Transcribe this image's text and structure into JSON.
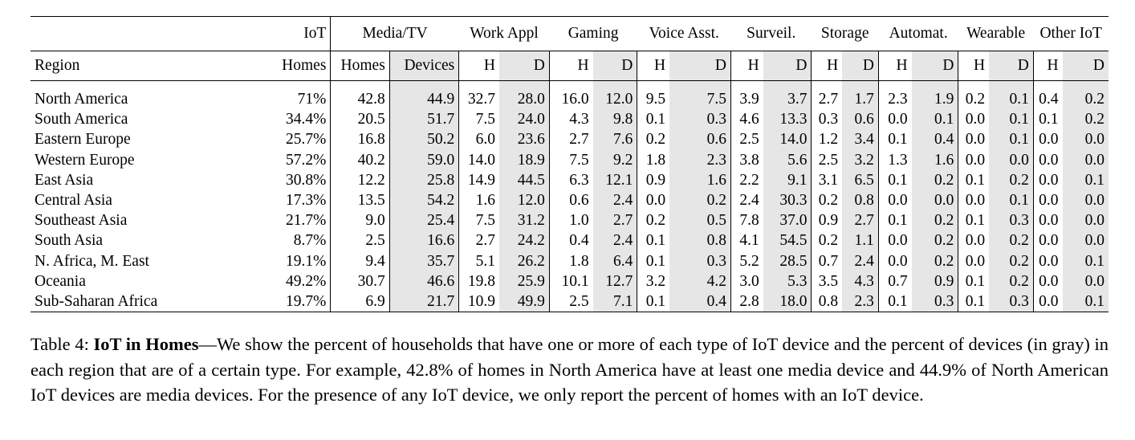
{
  "table": {
    "group_headers": [
      "IoT",
      "Media/TV",
      "Work Appl",
      "Gaming",
      "Voice Asst.",
      "Surveil.",
      "Storage",
      "Automat.",
      "Wearable",
      "Other IoT"
    ],
    "region_label": "Region",
    "iot_sub": "Homes",
    "media_sub": [
      "Homes",
      "Devices"
    ],
    "hd": [
      "H",
      "D"
    ],
    "rows": [
      {
        "region": "North America",
        "iot": "71%",
        "media_h": "42.8",
        "media_d": "44.9",
        "hd": [
          [
            "32.7",
            "28.0"
          ],
          [
            "16.0",
            "12.0"
          ],
          [
            "9.5",
            "7.5"
          ],
          [
            "3.9",
            "3.7"
          ],
          [
            "2.7",
            "1.7"
          ],
          [
            "2.3",
            "1.9"
          ],
          [
            "0.2",
            "0.1"
          ],
          [
            "0.4",
            "0.2"
          ]
        ]
      },
      {
        "region": "South America",
        "iot": "34.4%",
        "media_h": "20.5",
        "media_d": "51.7",
        "hd": [
          [
            "7.5",
            "24.0"
          ],
          [
            "4.3",
            "9.8"
          ],
          [
            "0.1",
            "0.3"
          ],
          [
            "4.6",
            "13.3"
          ],
          [
            "0.3",
            "0.6"
          ],
          [
            "0.0",
            "0.1"
          ],
          [
            "0.0",
            "0.1"
          ],
          [
            "0.1",
            "0.2"
          ]
        ]
      },
      {
        "region": "Eastern Europe",
        "iot": "25.7%",
        "media_h": "16.8",
        "media_d": "50.2",
        "hd": [
          [
            "6.0",
            "23.6"
          ],
          [
            "2.7",
            "7.6"
          ],
          [
            "0.2",
            "0.6"
          ],
          [
            "2.5",
            "14.0"
          ],
          [
            "1.2",
            "3.4"
          ],
          [
            "0.1",
            "0.4"
          ],
          [
            "0.0",
            "0.1"
          ],
          [
            "0.0",
            "0.0"
          ]
        ]
      },
      {
        "region": "Western Europe",
        "iot": "57.2%",
        "media_h": "40.2",
        "media_d": "59.0",
        "hd": [
          [
            "14.0",
            "18.9"
          ],
          [
            "7.5",
            "9.2"
          ],
          [
            "1.8",
            "2.3"
          ],
          [
            "3.8",
            "5.6"
          ],
          [
            "2.5",
            "3.2"
          ],
          [
            "1.3",
            "1.6"
          ],
          [
            "0.0",
            "0.0"
          ],
          [
            "0.0",
            "0.0"
          ]
        ]
      },
      {
        "region": "East Asia",
        "iot": "30.8%",
        "media_h": "12.2",
        "media_d": "25.8",
        "hd": [
          [
            "14.9",
            "44.5"
          ],
          [
            "6.3",
            "12.1"
          ],
          [
            "0.9",
            "1.6"
          ],
          [
            "2.2",
            "9.1"
          ],
          [
            "3.1",
            "6.5"
          ],
          [
            "0.1",
            "0.2"
          ],
          [
            "0.1",
            "0.2"
          ],
          [
            "0.0",
            "0.1"
          ]
        ]
      },
      {
        "region": "Central Asia",
        "iot": "17.3%",
        "media_h": "13.5",
        "media_d": "54.2",
        "hd": [
          [
            "1.6",
            "12.0"
          ],
          [
            "0.6",
            "2.4"
          ],
          [
            "0.0",
            "0.2"
          ],
          [
            "2.4",
            "30.3"
          ],
          [
            "0.2",
            "0.8"
          ],
          [
            "0.0",
            "0.0"
          ],
          [
            "0.0",
            "0.1"
          ],
          [
            "0.0",
            "0.0"
          ]
        ]
      },
      {
        "region": "Southeast Asia",
        "iot": "21.7%",
        "media_h": "9.0",
        "media_d": "25.4",
        "hd": [
          [
            "7.5",
            "31.2"
          ],
          [
            "1.0",
            "2.7"
          ],
          [
            "0.2",
            "0.5"
          ],
          [
            "7.8",
            "37.0"
          ],
          [
            "0.9",
            "2.7"
          ],
          [
            "0.1",
            "0.2"
          ],
          [
            "0.1",
            "0.3"
          ],
          [
            "0.0",
            "0.0"
          ]
        ]
      },
      {
        "region": "South Asia",
        "iot": "8.7%",
        "media_h": "2.5",
        "media_d": "16.6",
        "hd": [
          [
            "2.7",
            "24.2"
          ],
          [
            "0.4",
            "2.4"
          ],
          [
            "0.1",
            "0.8"
          ],
          [
            "4.1",
            "54.5"
          ],
          [
            "0.2",
            "1.1"
          ],
          [
            "0.0",
            "0.2"
          ],
          [
            "0.0",
            "0.2"
          ],
          [
            "0.0",
            "0.0"
          ]
        ]
      },
      {
        "region": "N. Africa, M. East",
        "iot": "19.1%",
        "media_h": "9.4",
        "media_d": "35.7",
        "hd": [
          [
            "5.1",
            "26.2"
          ],
          [
            "1.8",
            "6.4"
          ],
          [
            "0.1",
            "0.3"
          ],
          [
            "5.2",
            "28.5"
          ],
          [
            "0.7",
            "2.4"
          ],
          [
            "0.0",
            "0.2"
          ],
          [
            "0.0",
            "0.2"
          ],
          [
            "0.0",
            "0.1"
          ]
        ]
      },
      {
        "region": "Oceania",
        "iot": "49.2%",
        "media_h": "30.7",
        "media_d": "46.6",
        "hd": [
          [
            "19.8",
            "25.9"
          ],
          [
            "10.1",
            "12.7"
          ],
          [
            "3.2",
            "4.2"
          ],
          [
            "3.0",
            "5.3"
          ],
          [
            "3.5",
            "4.3"
          ],
          [
            "0.7",
            "0.9"
          ],
          [
            "0.1",
            "0.2"
          ],
          [
            "0.0",
            "0.0"
          ]
        ]
      },
      {
        "region": "Sub-Saharan Africa",
        "iot": "19.7%",
        "media_h": "6.9",
        "media_d": "21.7",
        "hd": [
          [
            "10.9",
            "49.9"
          ],
          [
            "2.5",
            "7.1"
          ],
          [
            "0.1",
            "0.4"
          ],
          [
            "2.8",
            "18.0"
          ],
          [
            "0.8",
            "2.3"
          ],
          [
            "0.1",
            "0.3"
          ],
          [
            "0.1",
            "0.3"
          ],
          [
            "0.0",
            "0.1"
          ]
        ]
      }
    ]
  },
  "caption": {
    "label": "Table 4:",
    "title": "IoT in Homes",
    "text": "—We show the percent of households that have one or more of each type of IoT device and the percent of devices (in gray) in each region that are of a certain type. For example, 42.8% of homes in North America have at least one media device and 44.9% of North American IoT devices are media devices. For the presence of any IoT device, we only report the percent of homes with an IoT device."
  },
  "colors": {
    "gray_fill": "#e6e6e6",
    "rule": "#000000"
  }
}
